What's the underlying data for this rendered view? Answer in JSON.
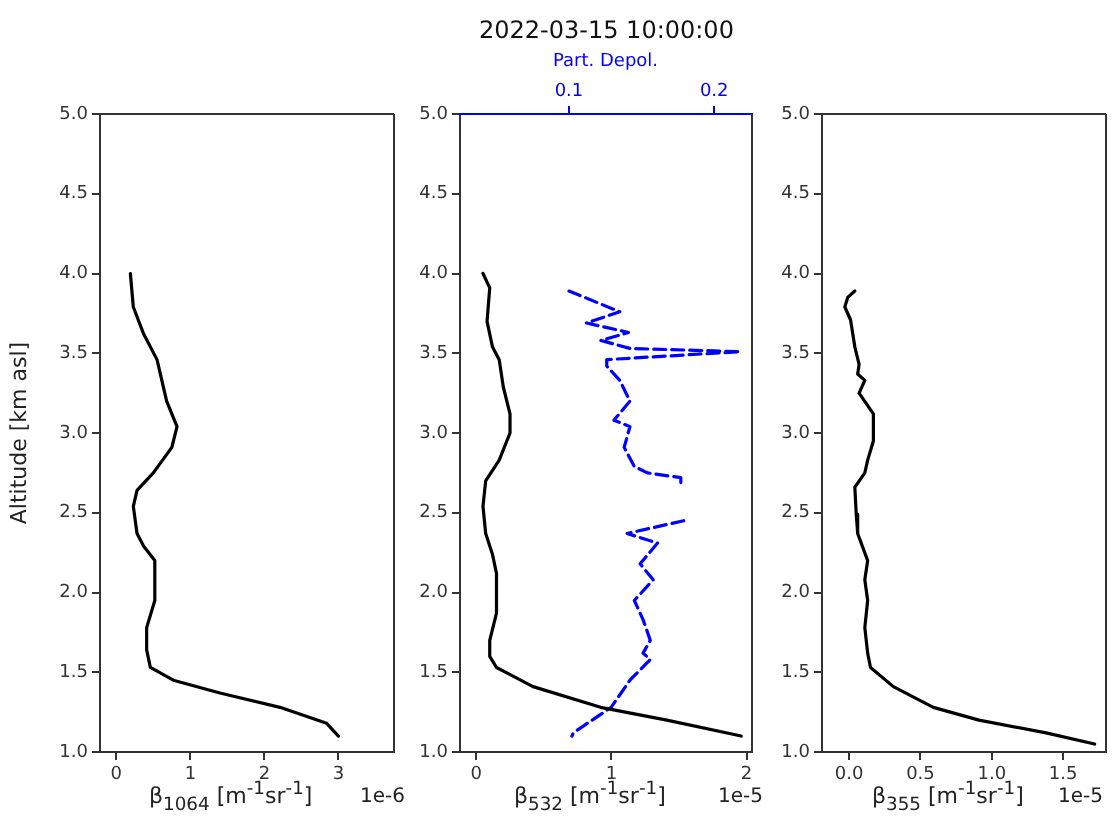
{
  "chart_data": [
    {
      "type": "line",
      "xlabel": "β$_{1064}$ [m$^{-1}$sr$^{-1}$]",
      "ylabel": "Altitude [km asl]",
      "annotations": [
        "1e-6"
      ],
      "xlim": [
        -0.22,
        3.75
      ],
      "xticks": [
        0,
        1,
        2,
        3
      ],
      "ylim": [
        1,
        5
      ],
      "yticks": [
        {
          "value": 1,
          "label": "1.0"
        },
        {
          "value": 1.5,
          "label": "1.5"
        },
        {
          "value": 2,
          "label": "2.0"
        },
        {
          "value": 2.5,
          "label": "2.5"
        },
        {
          "value": 3,
          "label": "3.0"
        },
        {
          "value": 3.5,
          "label": "3.5"
        },
        {
          "value": 4,
          "label": "4.0"
        },
        {
          "value": 4.5,
          "label": "4.5"
        },
        {
          "value": 5,
          "label": "5.0"
        }
      ],
      "grid": false,
      "legend": false,
      "marker": "none",
      "series": [
        {
          "color": "#000000",
          "line_style": "solid",
          "x": [
            0.19,
            0.23,
            0.37,
            0.55,
            0.68,
            0.82,
            0.75,
            0.5,
            0.28,
            0.23,
            0.28,
            0.37,
            0.52,
            0.52,
            0.41,
            0.41,
            0.46,
            0.77,
            1.4,
            2.21,
            2.84,
            3.0
          ],
          "values": [
            4.0,
            3.79,
            3.62,
            3.46,
            3.2,
            3.04,
            2.91,
            2.75,
            2.64,
            2.54,
            2.37,
            2.29,
            2.2,
            1.95,
            1.78,
            1.64,
            1.53,
            1.45,
            1.37,
            1.28,
            1.18,
            1.1
          ]
        }
      ]
    },
    {
      "type": "line",
      "title": "2022-03-15 10:00:00",
      "xlabel": "β$_{532}$ [m$^{-1}$sr$^{-1}$]",
      "x2label": "Part. Depol.",
      "annotations": [
        "1e-5"
      ],
      "xlim": [
        -0.12,
        2.04
      ],
      "xticks": [
        0,
        1,
        2
      ],
      "x2lim": [
        0.025,
        0.226
      ],
      "x2ticks": [
        0.1,
        0.2
      ],
      "ylim": [
        1,
        5
      ],
      "yticks": [
        {
          "value": 1,
          "label": "1.0"
        },
        {
          "value": 1.5,
          "label": "1.5"
        },
        {
          "value": 2,
          "label": "2.0"
        },
        {
          "value": 2.5,
          "label": "2.5"
        },
        {
          "value": 3,
          "label": "3.0"
        },
        {
          "value": 3.5,
          "label": "3.5"
        },
        {
          "value": 4,
          "label": "4.0"
        },
        {
          "value": 4.5,
          "label": "4.5"
        },
        {
          "value": 5,
          "label": "5.0"
        }
      ],
      "grid": false,
      "legend": false,
      "marker": "none",
      "series": [
        {
          "color": "#000000",
          "line_style": "solid",
          "x": [
            0.05,
            0.1,
            0.08,
            0.12,
            0.17,
            0.2,
            0.25,
            0.25,
            0.17,
            0.07,
            0.05,
            0.07,
            0.12,
            0.15,
            0.15,
            0.1,
            0.1,
            0.15,
            0.42,
            0.92,
            1.41,
            1.96
          ],
          "values": [
            4.0,
            3.91,
            3.7,
            3.54,
            3.46,
            3.29,
            3.12,
            3.0,
            2.83,
            2.7,
            2.54,
            2.37,
            2.24,
            2.12,
            1.87,
            1.7,
            1.6,
            1.53,
            1.41,
            1.28,
            1.2,
            1.1
          ]
        },
        {
          "color": "#0000ff",
          "line_style": "dashed",
          "axis": "x2",
          "x": [
            0.1,
            0.135,
            0.112,
            0.141,
            0.122,
            0.142,
            0.218,
            0.126,
            0.126,
            0.135,
            0.142,
            0.131,
            0.142,
            0.138,
            0.145,
            0.154,
            0.177,
            0.177,
            null,
            0.179,
            0.14,
            0.161,
            0.149,
            0.158,
            0.145,
            0.151,
            0.156,
            0.151,
            0.156,
            0.142,
            0.129,
            0.103,
            0.102
          ],
          "values": [
            3.89,
            3.76,
            3.69,
            3.63,
            3.58,
            3.53,
            3.51,
            3.46,
            3.42,
            3.33,
            3.2,
            3.08,
            3.04,
            2.91,
            2.79,
            2.75,
            2.72,
            2.66,
            null,
            2.45,
            2.37,
            2.31,
            2.18,
            2.08,
            1.95,
            1.83,
            1.7,
            1.62,
            1.58,
            1.45,
            1.28,
            1.12,
            1.1
          ]
        }
      ]
    },
    {
      "type": "line",
      "xlabel": "β$_{355}$ [m$^{-1}$sr$^{-1}$]",
      "annotations": [
        "1e-5"
      ],
      "xlim": [
        -0.19,
        1.8
      ],
      "xticks": [
        {
          "value": 0,
          "label": "0.0"
        },
        0.5,
        {
          "value": 1,
          "label": "1.0"
        },
        1.5
      ],
      "ylim": [
        1,
        5
      ],
      "yticks": [
        {
          "value": 1,
          "label": "1.0"
        },
        {
          "value": 1.5,
          "label": "1.5"
        },
        {
          "value": 2,
          "label": "2.0"
        },
        {
          "value": 2.5,
          "label": "2.5"
        },
        {
          "value": 3,
          "label": "3.0"
        },
        {
          "value": 3.5,
          "label": "3.5"
        },
        {
          "value": 4,
          "label": "4.0"
        },
        {
          "value": 4.5,
          "label": "4.5"
        },
        {
          "value": 5,
          "label": "5.0"
        }
      ],
      "grid": false,
      "legend": false,
      "marker": "none",
      "series": [
        {
          "color": "#000000",
          "line_style": "solid",
          "x": [
            0.04,
            -0.01,
            -0.03,
            0.01,
            0.04,
            0.07,
            0.06,
            0.11,
            0.07,
            0.17,
            0.17,
            0.13,
            0.11,
            0.04,
            0.05,
            0.06,
            0.13,
            0.11,
            0.13,
            0.11,
            0.13,
            0.15,
            0.31,
            0.59,
            0.91,
            1.38,
            1.72
          ],
          "values": [
            3.89,
            3.85,
            3.79,
            3.71,
            3.54,
            3.43,
            3.37,
            3.33,
            3.25,
            3.12,
            2.95,
            2.83,
            2.75,
            2.66,
            2.49,
            2.37,
            2.2,
            2.08,
            1.95,
            1.78,
            1.62,
            1.53,
            1.41,
            1.28,
            1.2,
            1.12,
            1.05
          ]
        }
      ]
    }
  ]
}
